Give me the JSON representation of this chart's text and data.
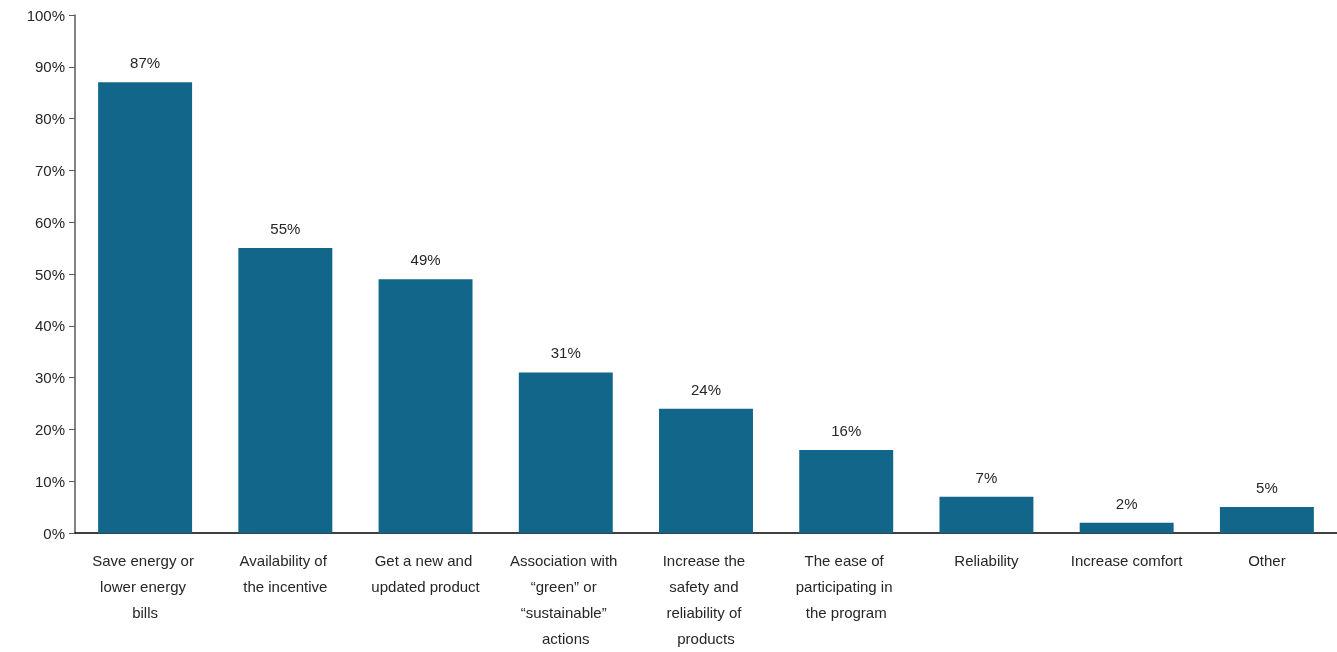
{
  "chart_data": {
    "type": "bar",
    "categories": [
      "Save energy or lower energy bills",
      "Availability of the incentive",
      "Get a new and updated product",
      "Association with “green” or “sustainable” actions",
      "Increase the safety and reliability of products",
      "The ease of participating in the program",
      "Reliability",
      "Increase comfort",
      "Other"
    ],
    "values": [
      87,
      55,
      49,
      31,
      24,
      16,
      7,
      2,
      5
    ],
    "value_labels": [
      "87%",
      "55%",
      "49%",
      "31%",
      "24%",
      "16%",
      "7%",
      "2%",
      "5%"
    ],
    "color": "#11668a",
    "ylim": [
      0,
      100
    ],
    "yticks": [
      {
        "value": 0,
        "label": "0%"
      },
      {
        "value": 10,
        "label": "10%"
      },
      {
        "value": 20,
        "label": "20%"
      },
      {
        "value": 30,
        "label": "30%"
      },
      {
        "value": 40,
        "label": "40%"
      },
      {
        "value": 50,
        "label": "50%"
      },
      {
        "value": 60,
        "label": "60%"
      },
      {
        "value": 70,
        "label": "70%"
      },
      {
        "value": 80,
        "label": "80%"
      },
      {
        "value": 90,
        "label": "90%"
      },
      {
        "value": 100,
        "label": "100%"
      }
    ],
    "grid": false
  }
}
